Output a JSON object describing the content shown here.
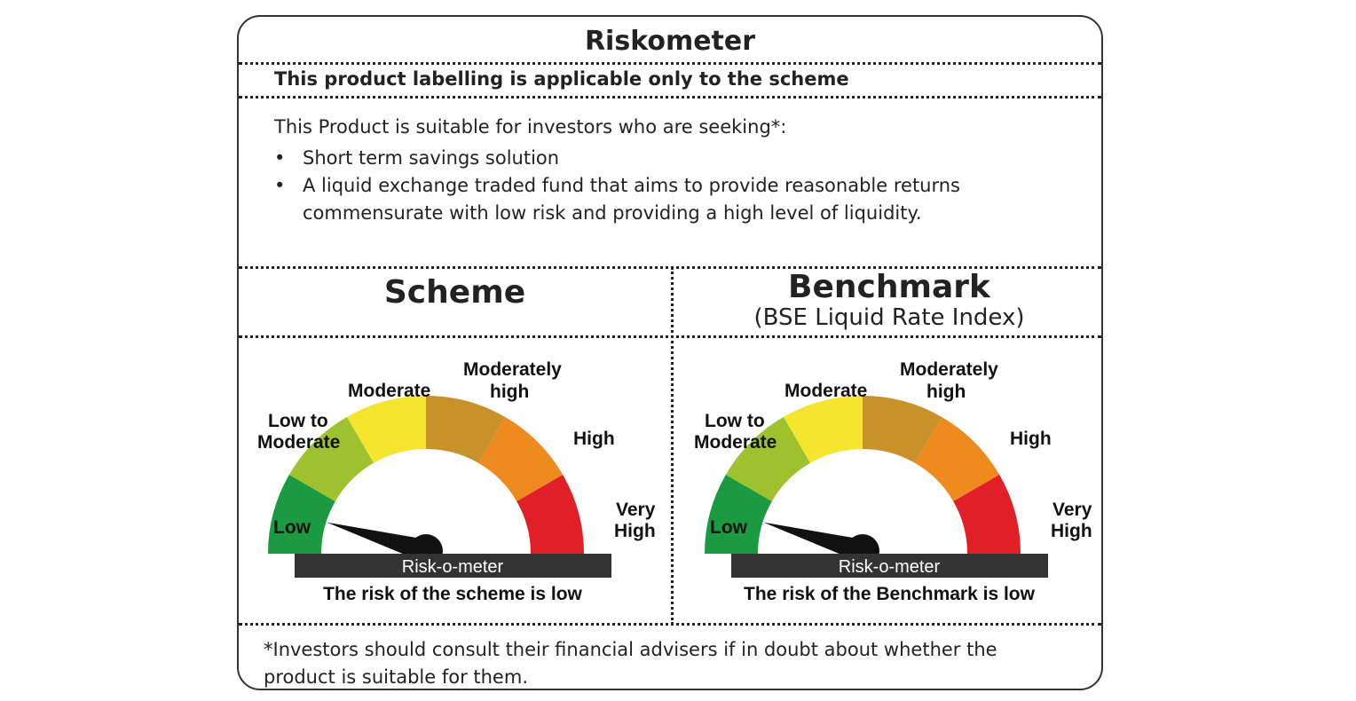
{
  "header": {
    "title": "Riskometer"
  },
  "labelling": "This product labelling is applicable only to the scheme",
  "suitability": {
    "intro": "This Product is suitable for investors who are seeking*:",
    "bullets": [
      "Short term savings solution",
      "A liquid exchange traded fund that aims to provide reasonable returns commensurate with low risk and providing a high level of liquidity."
    ]
  },
  "scheme": {
    "heading": "Scheme",
    "meter": {
      "labels": {
        "low": "Low",
        "low_to_moderate": [
          "Low to",
          "Moderate"
        ],
        "moderate": "Moderate",
        "moderately_high": [
          "Moderately",
          "high"
        ],
        "high": "High",
        "very_high": [
          "Very",
          "High"
        ]
      },
      "bar_label": "Risk-o-meter",
      "risk_text": "The risk of the scheme is low",
      "level": "Low"
    }
  },
  "benchmark": {
    "heading": "Benchmark",
    "subheading": "(BSE Liquid Rate Index)",
    "meter": {
      "labels": {
        "low": "Low",
        "low_to_moderate": [
          "Low to",
          "Moderate"
        ],
        "moderate": "Moderate",
        "moderately_high": [
          "Moderately",
          "high"
        ],
        "high": "High",
        "very_high": [
          "Very",
          "High"
        ]
      },
      "bar_label": "Risk-o-meter",
      "risk_text": "The risk of the Benchmark is low",
      "level": "Low"
    }
  },
  "footnote": "*Investors should consult their financial advisers if in doubt about whether the product is suitable for them.",
  "colors": {
    "low": "#1a9a41",
    "low_to_moderate": "#9dc22d",
    "moderate": "#f4e52f",
    "moderately_high": "#c8912a",
    "high": "#ef8a1f",
    "very_high": "#e01f26",
    "bar": "#333333"
  }
}
